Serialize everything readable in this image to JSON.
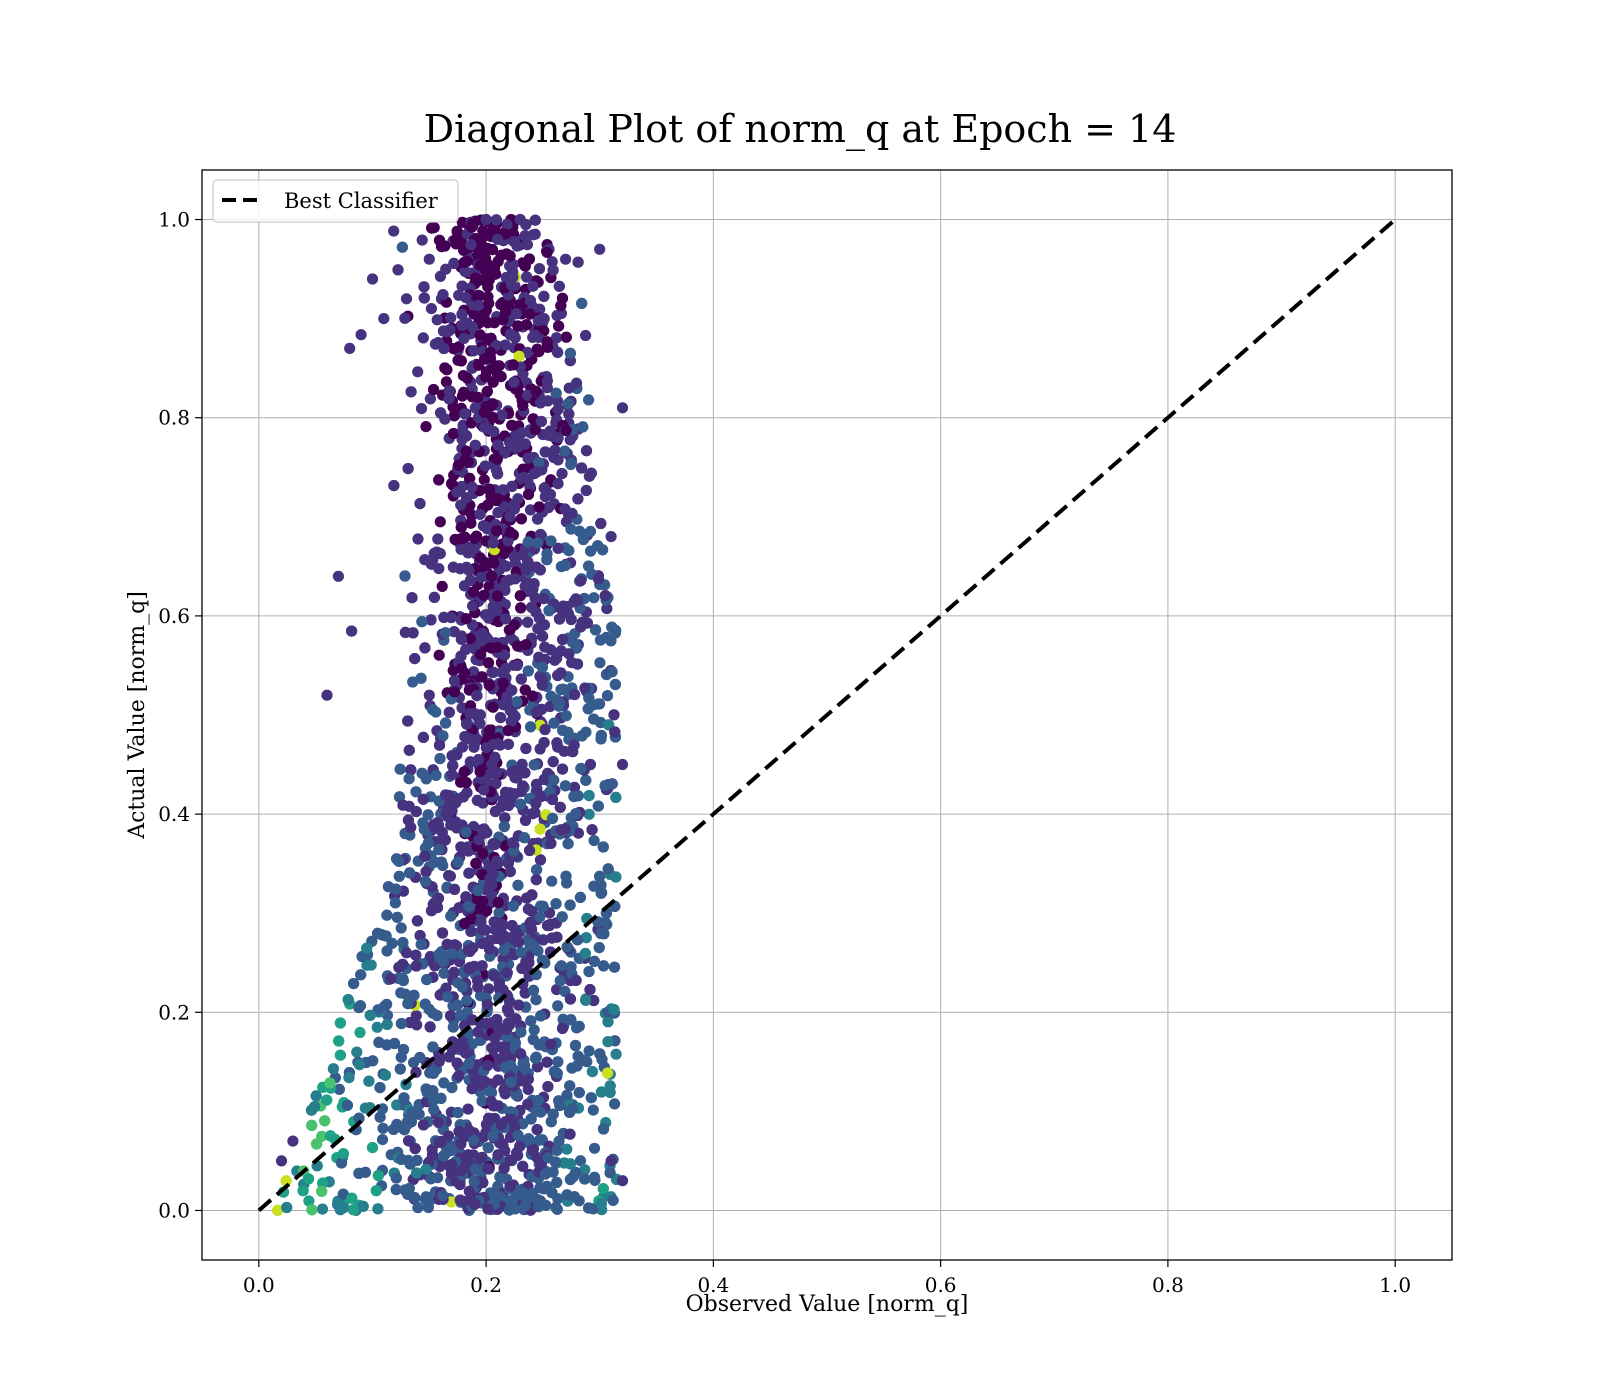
{
  "chart_data": {
    "type": "scatter",
    "title": "Diagonal Plot of norm_q at Epoch = 14",
    "xlabel": "Observed Value [norm_q]",
    "ylabel": "Actual Value [norm_q]",
    "xlim": [
      -0.05,
      1.05
    ],
    "ylim": [
      -0.05,
      1.05
    ],
    "xticks": [
      "0.0",
      "0.2",
      "0.4",
      "0.6",
      "0.8",
      "1.0"
    ],
    "yticks": [
      "0.0",
      "0.2",
      "0.4",
      "0.6",
      "0.8",
      "1.0"
    ],
    "grid": true,
    "legend_position": "top-left",
    "colormap": "viridis",
    "series": [
      {
        "name": "Best Classifier",
        "kind": "line",
        "style": "dashed",
        "color": "#000000",
        "x": [
          0.0,
          1.0
        ],
        "y": [
          0.0,
          1.0
        ]
      },
      {
        "kind": "scatter",
        "description_of_distribution": "dense cloud, x between ~0.01 and ~0.32, y between 0 and 1; highest density around x=0.2",
        "sample_points": [
          [
            0.2,
            1.0
          ],
          [
            0.23,
            1.0
          ],
          [
            0.21,
            0.98
          ],
          [
            0.15,
            0.96
          ],
          [
            0.27,
            0.96
          ],
          [
            0.3,
            0.97
          ],
          [
            0.1,
            0.94
          ],
          [
            0.13,
            0.92
          ],
          [
            0.08,
            0.87
          ],
          [
            0.11,
            0.9
          ],
          [
            0.07,
            0.64
          ],
          [
            0.06,
            0.52
          ],
          [
            0.32,
            0.81
          ],
          [
            0.32,
            0.45
          ],
          [
            0.31,
            0.68
          ],
          [
            0.13,
            0.26
          ],
          [
            0.15,
            0.52
          ],
          [
            0.03,
            0.07
          ],
          [
            0.02,
            0.05
          ],
          [
            0.31,
            0.05
          ],
          [
            0.32,
            0.03
          ],
          [
            0.25,
            0.9
          ],
          [
            0.17,
            0.44
          ],
          [
            0.22,
            0.2
          ]
        ]
      }
    ],
    "colors": {
      "viridis_dark": "#440154",
      "viridis_purple": "#46327e",
      "viridis_blue": "#365c8d",
      "viridis_teal": "#277f8e",
      "viridis_green": "#1fa187",
      "viridis_lime": "#4ac16d",
      "viridis_yellow": "#c8e020",
      "grid": "#b0b0b0"
    }
  }
}
